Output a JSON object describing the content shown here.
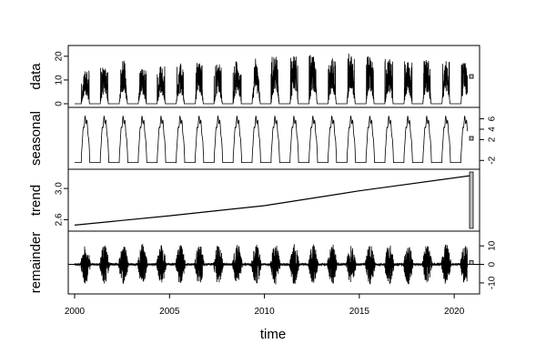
{
  "chart_data": {
    "type": "line",
    "layout": "stacked-panels",
    "xlabel": "time",
    "x_range": [
      2000,
      2021
    ],
    "x_ticks": [
      2000,
      2005,
      2010,
      2015,
      2020
    ],
    "x_tick_labels": [
      "2000",
      "2005",
      "2010",
      "2015",
      "2020"
    ],
    "panels": [
      {
        "key": "data",
        "ylabel": "data",
        "axis_side": "left",
        "ylim": [
          0,
          23
        ],
        "y_ticks": [
          0,
          10,
          20
        ],
        "y_tick_labels": [
          "0",
          "10",
          "20"
        ],
        "style": "spiky-nonneg",
        "baseline": 0,
        "season_peaks": [
          14,
          16,
          19,
          15,
          16,
          17,
          18,
          17,
          18,
          19,
          20,
          21,
          21,
          20,
          22,
          20,
          19,
          18,
          19,
          18,
          18
        ]
      },
      {
        "key": "seasonal",
        "ylabel": "seasonal",
        "axis_side": "right",
        "ylim": [
          -3,
          7.5
        ],
        "y_ticks": [
          -2,
          2,
          4,
          6
        ],
        "y_tick_labels": [
          "-2",
          "2",
          "4",
          "6"
        ],
        "style": "periodic",
        "low": -2.4,
        "high": 6.6
      },
      {
        "key": "trend",
        "ylabel": "trend",
        "axis_side": "left",
        "ylim": [
          2.5,
          3.2
        ],
        "y_ticks": [
          2.6,
          3.0
        ],
        "y_tick_labels": [
          "2.6",
          "3.0"
        ],
        "style": "line",
        "points": [
          [
            2000,
            2.53
          ],
          [
            2005,
            2.65
          ],
          [
            2010,
            2.78
          ],
          [
            2015,
            2.97
          ],
          [
            2021,
            3.17
          ]
        ]
      },
      {
        "key": "remainder",
        "ylabel": "remainder",
        "axis_side": "right",
        "ylim": [
          -14,
          16
        ],
        "y_ticks": [
          -10,
          0,
          10
        ],
        "y_tick_labels": [
          "-10",
          "0",
          "10"
        ],
        "style": "spiky-symmetric",
        "baseline": 0,
        "amplitude": 11
      }
    ]
  }
}
